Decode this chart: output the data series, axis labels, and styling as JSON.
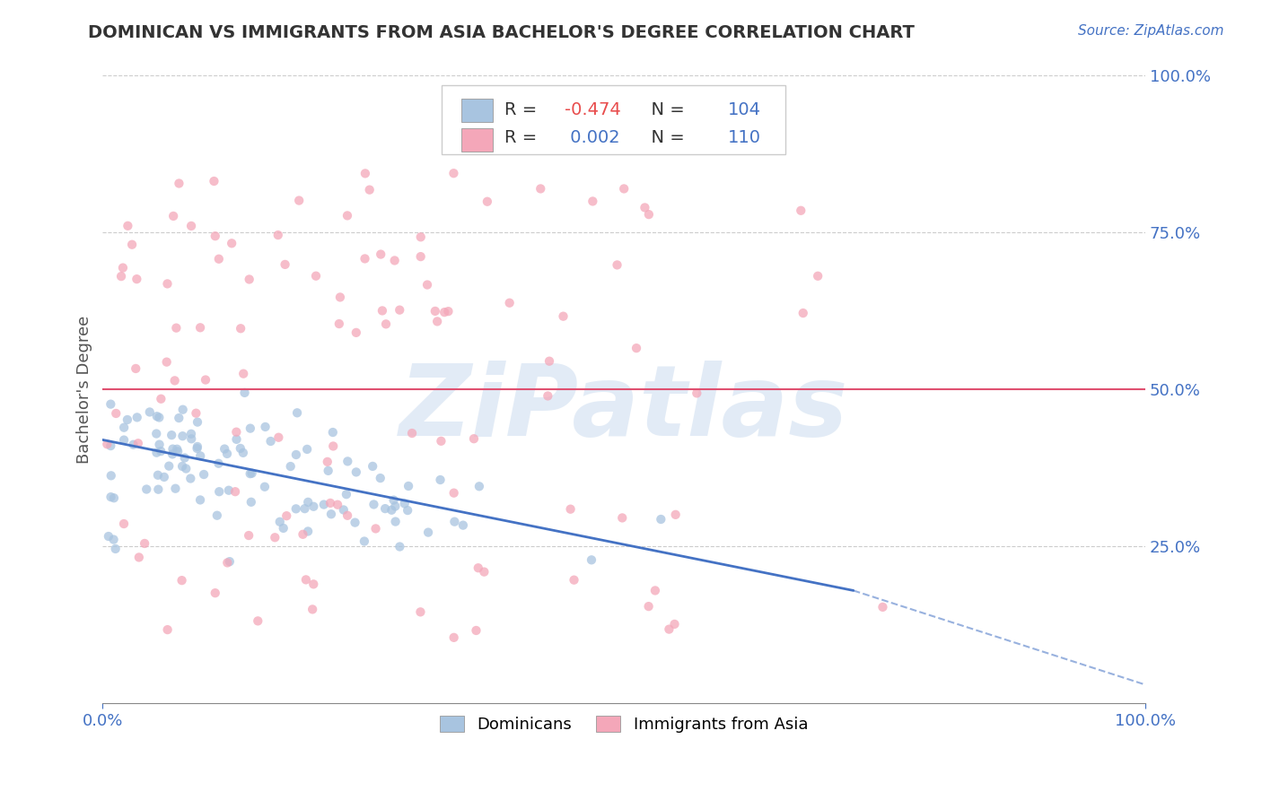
{
  "title": "DOMINICAN VS IMMIGRANTS FROM ASIA BACHELOR'S DEGREE CORRELATION CHART",
  "source": "Source: ZipAtlas.com",
  "ylabel": "Bachelor's Degree",
  "r_dominican": -0.474,
  "n_dominican": 104,
  "r_asia": 0.002,
  "n_asia": 110,
  "color_dominican": "#a8c4e0",
  "color_asia": "#f4a7b9",
  "trend_color_dominican": "#4472c4",
  "trend_color_asia": "#e05070",
  "label_color": "#4472c4",
  "r_value_color_dominican": "#e84c4c",
  "r_value_color_asia": "#4472c4",
  "watermark_color": "#d0dff0",
  "grid_color": "#cccccc",
  "title_color": "#333333",
  "source_color": "#4472c4",
  "xlim": [
    0.0,
    1.0
  ],
  "ylim": [
    0.0,
    1.0
  ],
  "ytick_vals": [
    0.25,
    0.5,
    0.75,
    1.0
  ],
  "ytick_labels": [
    "25.0%",
    "50.0%",
    "75.0%",
    "100.0%"
  ],
  "xtick_vals": [
    0.0,
    1.0
  ],
  "xtick_labels": [
    "0.0%",
    "100.0%"
  ],
  "legend_bottom_labels": [
    "Dominicans",
    "Immigrants from Asia"
  ],
  "dom_trend_x_start": 0.0,
  "dom_trend_y_start": 0.42,
  "dom_trend_x_end": 0.72,
  "dom_trend_y_end": 0.18,
  "dom_trend_dash_x_end": 1.0,
  "dom_trend_dash_y_end": 0.03,
  "asia_trend_y": 0.5
}
